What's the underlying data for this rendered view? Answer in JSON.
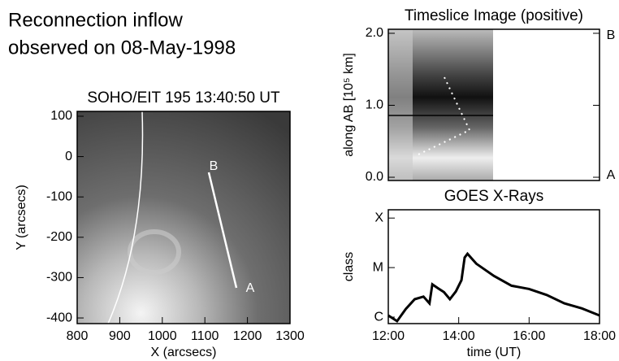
{
  "title": [
    "Reconnection inflow",
    "observed on 08-May-1998"
  ],
  "chart_data": [
    {
      "type": "image",
      "title": "SOHO/EIT 195   13:40:50 UT",
      "x_label": "X (arcsecs)",
      "y_label": "Y (arcsecs)",
      "xlim": [
        800,
        1300
      ],
      "ylim": [
        -414,
        112
      ],
      "xticks": [
        800,
        900,
        1000,
        1100,
        1200,
        1300
      ],
      "yticks": [
        100,
        0,
        -100,
        -200,
        -300,
        -400
      ],
      "annotations": [
        "B",
        "A"
      ]
    },
    {
      "type": "image",
      "title": "Timeslice Image (positive)",
      "y_label": "along AB  [10⁵ km]",
      "ylim": [
        -0.045,
        2.056
      ],
      "yticks": [
        {
          "value": 0,
          "label": "0.0"
        },
        {
          "value": 1,
          "label": "1.0"
        },
        {
          "value": 2,
          "label": "2.0"
        }
      ],
      "annotations": [
        "B",
        "A"
      ]
    },
    {
      "type": "line",
      "title": "GOES X-Rays",
      "x_label": "time (UT)",
      "y_label": "class",
      "log_y": true,
      "color": "#000000",
      "xlim": [
        12,
        18
      ],
      "ylim": [
        7.4e-07,
        0.000147
      ],
      "xticks": [
        {
          "value": 12,
          "label": "12:00"
        },
        {
          "value": 14,
          "label": "14:00"
        },
        {
          "value": 16,
          "label": "16:00"
        },
        {
          "value": 18,
          "label": "18:00"
        }
      ],
      "yticks": [
        {
          "value": 1e-06,
          "label": "C"
        },
        {
          "value": 1e-05,
          "label": "M"
        },
        {
          "value": 0.0001,
          "label": "X"
        }
      ],
      "x": [
        12,
        12.25,
        12.5,
        12.75,
        13,
        13.17,
        13.25,
        13.42,
        13.58,
        13.75,
        13.92,
        14.08,
        14.17,
        14.25,
        14.5,
        15,
        15.5,
        16,
        16.5,
        17,
        17.5,
        18
      ],
      "values": [
        1.08e-06,
        8.3e-07,
        1.47e-06,
        2.3e-06,
        2.6e-06,
        1.9e-06,
        4.6e-06,
        3.8e-06,
        3.2e-06,
        2.3e-06,
        3.3e-06,
        5.6e-06,
        1.6e-05,
        1.9e-05,
        1.2e-05,
        6.8e-06,
        4.3e-06,
        3.7e-06,
        2.8e-06,
        1.9e-06,
        1.5e-06,
        1.08e-06
      ]
    }
  ]
}
